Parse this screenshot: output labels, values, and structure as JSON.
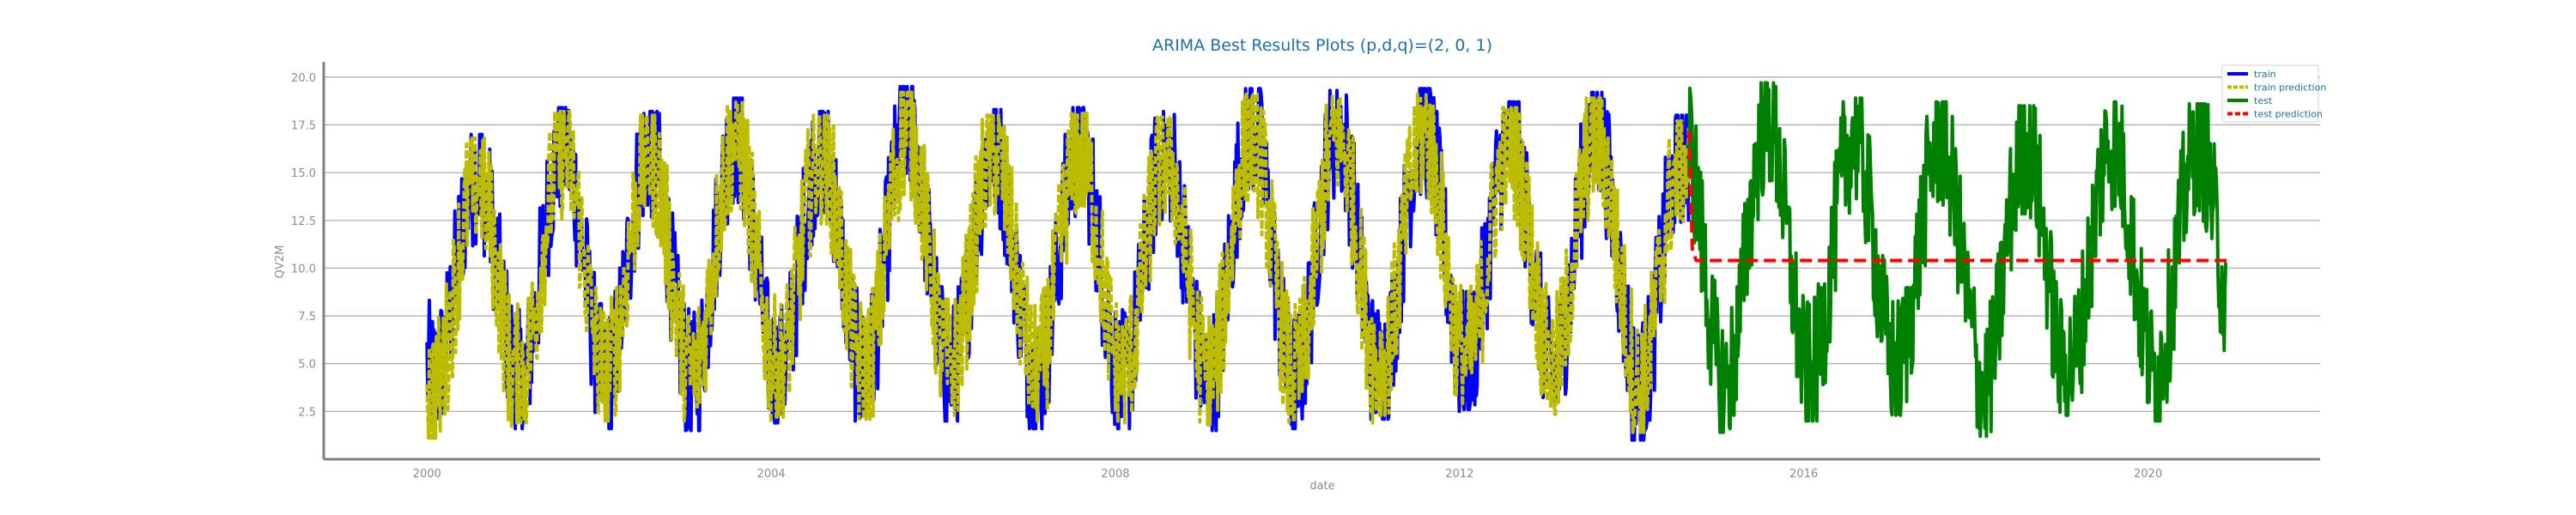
{
  "chart_data": {
    "type": "line",
    "title": "ARIMA Best Results Plots (p,d,q)=(2, 0, 1)",
    "xlabel": "date",
    "ylabel": "QV2M",
    "xlim": [
      1998.8,
      2022.0
    ],
    "ylim": [
      0.0,
      20.8
    ],
    "x_ticks": [
      "2000",
      "2004",
      "2008",
      "2012",
      "2016",
      "2020"
    ],
    "y_ticks": [
      "2.5",
      "5.0",
      "7.5",
      "10.0",
      "12.5",
      "15.0",
      "17.5",
      "20.0"
    ],
    "grid": "horizontal",
    "legend_position": "top-right",
    "colors": {
      "train": "#0000ff",
      "train_prediction": "#bcbd00",
      "test": "#008000",
      "test_prediction": "#ff0000",
      "grid": "#b0b0b0",
      "axis": "#808080"
    },
    "series": [
      {
        "name": "train",
        "style": "solid",
        "date_range": [
          "2000-01",
          "2014-09"
        ],
        "seasonal_envelope": {
          "years": [
            2000,
            2001,
            2002,
            2003,
            2004,
            2005,
            2006,
            2007,
            2008,
            2009,
            2010,
            2011,
            2012,
            2013,
            2014
          ],
          "summer_max": [
            17.0,
            18.4,
            18.2,
            18.9,
            18.2,
            19.5,
            18.3,
            18.4,
            18.2,
            19.4,
            19.3,
            19.4,
            18.7,
            19.2,
            18.0
          ],
          "winter_min": [
            1.8,
            1.6,
            1.6,
            1.5,
            1.9,
            1.9,
            2.0,
            1.6,
            1.6,
            1.5,
            1.6,
            2.1,
            2.6,
            2.0,
            1.0
          ]
        }
      },
      {
        "name": "train prediction",
        "style": "dashed",
        "date_range": [
          "2000-01",
          "2014-09"
        ],
        "seasonal_envelope": {
          "years": [
            2000,
            2001,
            2002,
            2003,
            2004,
            2005,
            2006,
            2007,
            2008,
            2009,
            2010,
            2011,
            2012,
            2013,
            2014
          ],
          "summer_max": [
            16.8,
            18.2,
            18.0,
            18.7,
            18.0,
            19.2,
            18.0,
            18.1,
            17.9,
            19.1,
            19.0,
            19.1,
            18.4,
            18.9,
            17.7
          ],
          "winter_min": [
            1.1,
            1.9,
            2.0,
            1.9,
            2.2,
            2.1,
            2.3,
            2.0,
            1.9,
            1.8,
            1.9,
            2.3,
            2.8,
            2.3,
            1.4
          ]
        }
      },
      {
        "name": "test",
        "style": "solid",
        "date_range": [
          "2014-09",
          "2020-12"
        ],
        "seasonal_envelope": {
          "years": [
            2015,
            2016,
            2017,
            2018,
            2019,
            2020
          ],
          "summer_max": [
            19.7,
            18.9,
            18.7,
            18.5,
            18.7,
            18.6
          ],
          "winter_min": [
            1.4,
            2.0,
            2.3,
            1.2,
            2.3,
            2.0
          ]
        }
      },
      {
        "name": "test prediction",
        "style": "dashed",
        "x": [
          "2014-09",
          "2014-09-15",
          "2014-10",
          "2020-12"
        ],
        "y": [
          17.2,
          11.0,
          10.4,
          10.4
        ]
      }
    ]
  }
}
